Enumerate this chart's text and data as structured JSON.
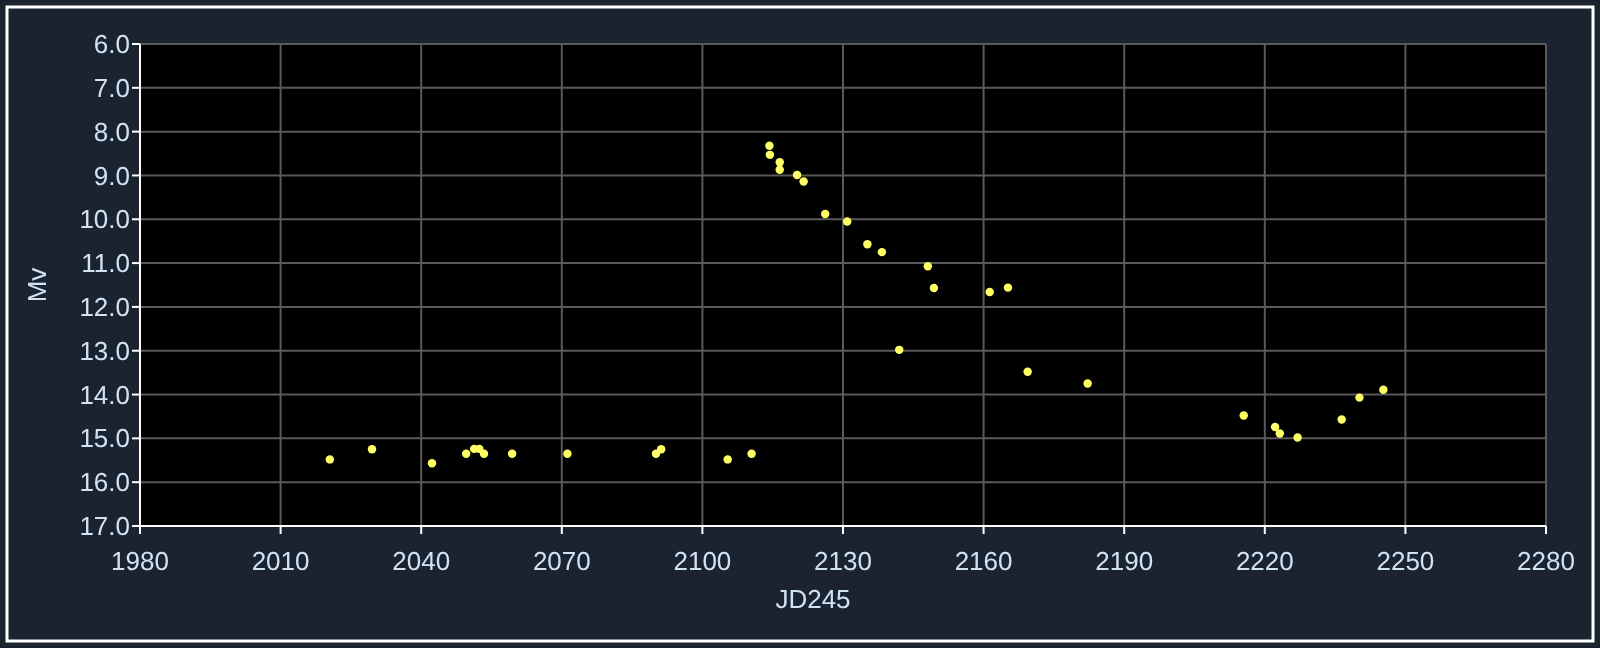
{
  "chart_data": {
    "type": "scatter",
    "xlabel": "JD245",
    "ylabel": "Mv",
    "x": [
      2020.5,
      2029.5,
      2042.3,
      2049.6,
      2051.3,
      2052.4,
      2053.4,
      2059.4,
      2071.2,
      2090.1,
      2091.2,
      2105.4,
      2110.5,
      2114.3,
      2114.4,
      2116.5,
      2116.5,
      2120.2,
      2121.6,
      2126.2,
      2130.9,
      2135.2,
      2138.3,
      2142.0,
      2148.1,
      2149.4,
      2161.3,
      2165.2,
      2169.4,
      2182.2,
      2215.5,
      2222.2,
      2223.2,
      2227.0,
      2236.4,
      2240.2,
      2245.3
    ],
    "series": [
      {
        "color": "#ffff66",
        "values": [
          15.48,
          15.25,
          15.57,
          15.35,
          15.24,
          15.24,
          15.35,
          15.35,
          15.35,
          15.35,
          15.25,
          15.48,
          15.35,
          8.32,
          8.53,
          8.7,
          8.87,
          8.99,
          9.14,
          9.88,
          10.05,
          10.57,
          10.75,
          12.98,
          11.07,
          11.57,
          11.66,
          11.56,
          13.48,
          13.75,
          14.48,
          14.74,
          14.89,
          14.98,
          14.57,
          14.07,
          13.89
        ]
      }
    ],
    "xlim": [
      1980,
      2280
    ],
    "xticks": [
      1980,
      2010,
      2040,
      2070,
      2100,
      2130,
      2160,
      2190,
      2220,
      2250,
      2280
    ],
    "ylim": [
      17,
      6
    ],
    "yticks": [
      {
        "value": 6,
        "label": "6.0"
      },
      {
        "value": 7,
        "label": "7.0"
      },
      {
        "value": 8,
        "label": "8.0"
      },
      {
        "value": 9,
        "label": "9.0"
      },
      {
        "value": 10,
        "label": "10.0"
      },
      {
        "value": 11,
        "label": "11.0"
      },
      {
        "value": 12,
        "label": "12.0"
      },
      {
        "value": 13,
        "label": "13.0"
      },
      {
        "value": 14,
        "label": "14.0"
      },
      {
        "value": 15,
        "label": "15.0"
      },
      {
        "value": 16,
        "label": "16.0"
      },
      {
        "value": 17,
        "label": "17.0"
      }
    ],
    "grid": true,
    "marker": "circle"
  }
}
